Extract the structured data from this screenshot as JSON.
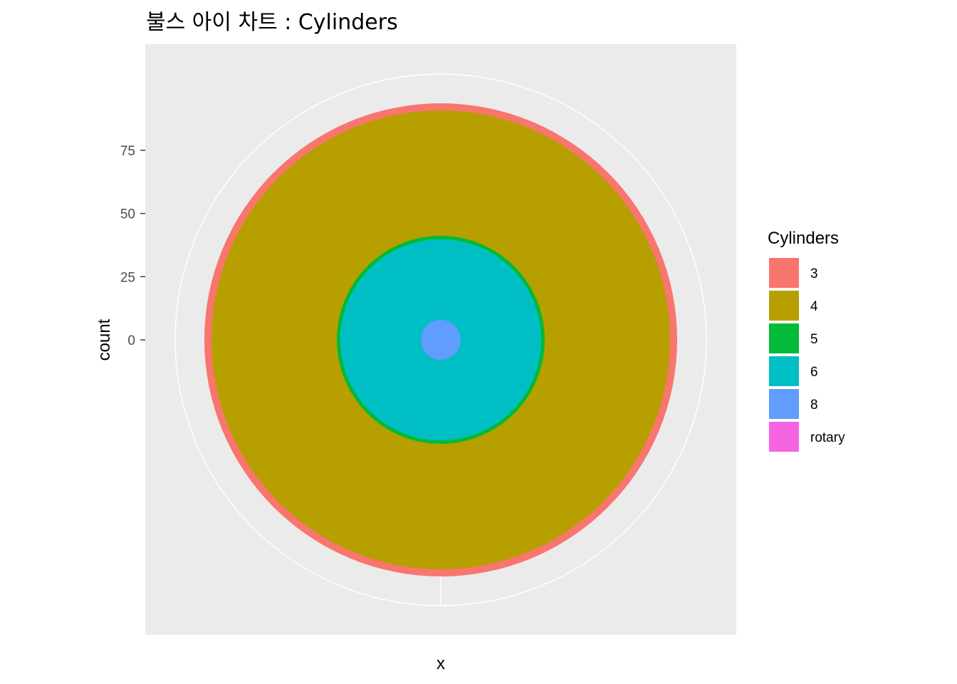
{
  "chart_data": {
    "type": "pie",
    "subtype": "bullseye",
    "title": "불스 아이 차트 : Cylinders",
    "xlabel": "x",
    "ylabel": "count",
    "y_ticks": [
      0,
      25,
      50,
      75
    ],
    "y_tick_labels": [
      "0",
      "25",
      "50",
      "75"
    ],
    "ylim": [
      -24,
      103
    ],
    "legend": {
      "title": "Cylinders",
      "position": "right",
      "entries": [
        {
          "label": "3",
          "color": "#F8766D"
        },
        {
          "label": "4",
          "color": "#B79F00"
        },
        {
          "label": "5",
          "color": "#00BA38"
        },
        {
          "label": "6",
          "color": "#00BFC4"
        },
        {
          "label": "8",
          "color": "#619CFF"
        },
        {
          "label": "rotary",
          "color": "#F564E3"
        }
      ]
    },
    "series": [
      {
        "name": "8",
        "cumulative_start": 0,
        "cumulative_end": 8,
        "color": "#619CFF"
      },
      {
        "name": "6",
        "cumulative_start": 8,
        "cumulative_end": 38,
        "color": "#00BFC4"
      },
      {
        "name": "5",
        "cumulative_start": 38,
        "cumulative_end": 40,
        "color": "#00BA38"
      },
      {
        "name": "4",
        "cumulative_start": 40,
        "cumulative_end": 90,
        "color": "#B79F00"
      },
      {
        "name": "3",
        "cumulative_start": 90,
        "cumulative_end": 93,
        "color": "#F8766D"
      }
    ],
    "panel_background": "#EBEBEB",
    "grid_color": "#FFFFFF",
    "grid": true
  }
}
